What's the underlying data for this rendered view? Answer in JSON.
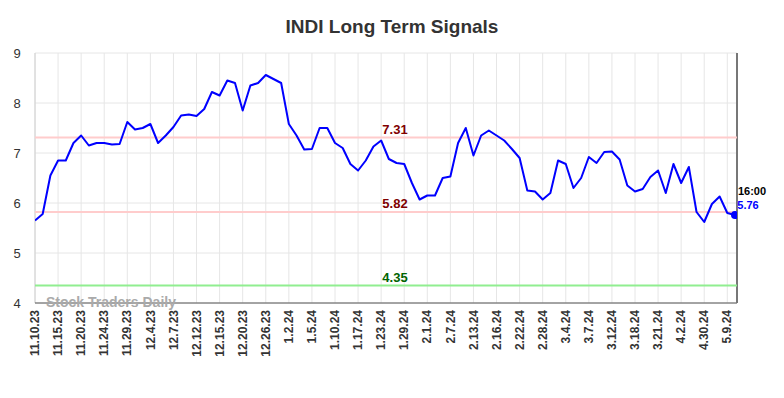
{
  "chart_data": {
    "type": "line",
    "title": "INDI Long Term Signals",
    "categories": [
      "11.10.23",
      null,
      null,
      "11.15.23",
      null,
      null,
      "11.20.23",
      null,
      null,
      "11.24.23",
      null,
      null,
      "11.29.23",
      null,
      null,
      "12.4.23",
      null,
      null,
      "12.7.23",
      null,
      null,
      "12.12.23",
      null,
      null,
      "12.15.23",
      null,
      null,
      "12.20.23",
      null,
      null,
      "12.26.23",
      null,
      null,
      "1.2.24",
      null,
      null,
      "1.5.24",
      null,
      null,
      "1.10.24",
      null,
      null,
      "1.17.24",
      null,
      null,
      "1.23.24",
      null,
      null,
      "1.29.24",
      null,
      null,
      "2.1.24",
      null,
      null,
      "2.7.24",
      null,
      null,
      "2.13.24",
      null,
      null,
      "2.16.24",
      null,
      null,
      "2.22.24",
      null,
      null,
      "2.28.24",
      null,
      null,
      "3.4.24",
      null,
      null,
      "3.7.24",
      null,
      null,
      "3.12.24",
      null,
      null,
      "3.18.24",
      null,
      null,
      "3.21.24",
      null,
      null,
      "4.2.24",
      null,
      null,
      "4.30.24",
      null,
      null,
      "5.9.24",
      null
    ],
    "values": [
      5.65,
      5.78,
      6.55,
      6.85,
      6.85,
      7.2,
      7.35,
      7.15,
      7.2,
      7.2,
      7.17,
      7.18,
      7.62,
      7.47,
      7.5,
      7.58,
      7.2,
      7.35,
      7.52,
      7.75,
      7.77,
      7.74,
      7.88,
      8.22,
      8.15,
      8.45,
      8.4,
      7.85,
      8.35,
      8.4,
      8.56,
      8.48,
      8.4,
      7.58,
      7.35,
      7.07,
      7.08,
      7.5,
      7.5,
      7.2,
      7.1,
      6.78,
      6.65,
      6.85,
      7.13,
      7.25,
      6.88,
      6.8,
      6.78,
      6.4,
      6.07,
      6.15,
      6.15,
      6.5,
      6.53,
      7.2,
      7.5,
      6.95,
      7.35,
      7.45,
      7.35,
      7.25,
      7.08,
      6.9,
      6.25,
      6.23,
      6.07,
      6.2,
      6.85,
      6.78,
      6.3,
      6.5,
      6.92,
      6.8,
      7.02,
      7.03,
      6.87,
      6.35,
      6.23,
      6.28,
      6.52,
      6.65,
      6.2,
      6.78,
      6.4,
      6.72,
      5.82,
      5.62,
      5.98,
      6.13,
      5.8,
      5.76
    ],
    "color": "#0000ff",
    "ylim": [
      4,
      9
    ],
    "yticks": [
      4,
      5,
      6,
      7,
      8,
      9
    ],
    "grid": true,
    "reference_lines": [
      {
        "value": 7.31,
        "color": "#ffcccc",
        "label_color": "#800000"
      },
      {
        "value": 5.82,
        "color": "#ffcccc",
        "label_color": "#800000"
      },
      {
        "value": 4.35,
        "color": "#90ee90",
        "label_color": "#006400"
      }
    ],
    "end_label": "16:00",
    "watermark": "Stock Traders Daily"
  }
}
